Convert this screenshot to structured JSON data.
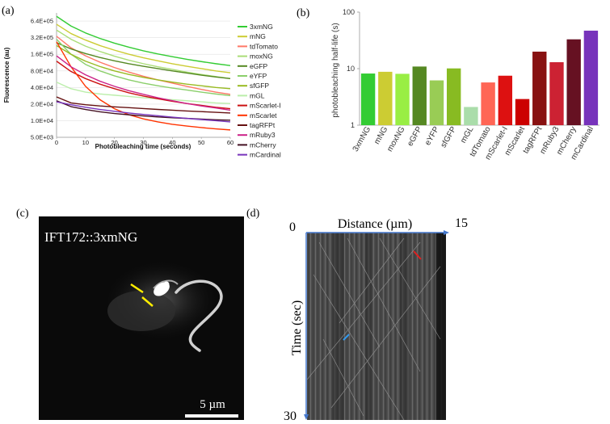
{
  "panels": {
    "a": "(a)",
    "b": "(b)",
    "c": "(c)",
    "d": "(d)"
  },
  "chart_data": [
    {
      "type": "line",
      "panel": "(a)",
      "xlabel": "Photobleaching time (seconds)",
      "ylabel": "Fluorescence (au)",
      "x_ticks": [
        "0",
        "10",
        "20",
        "30",
        "40",
        "50",
        "60"
      ],
      "xlim": [
        0,
        60
      ],
      "y_scale": "log",
      "y_ticks": [
        "6.4E+05",
        "3.2E+05",
        "1.6E+05",
        "8.0E+04",
        "4.0E+04",
        "2.0E+04",
        "1.0E+04",
        "5.0E+03"
      ],
      "ylim": [
        5000,
        900000
      ],
      "x": [
        0,
        5,
        10,
        15,
        20,
        25,
        30,
        35,
        40,
        45,
        50,
        55,
        60
      ],
      "series": [
        {
          "name": "3xmNG",
          "color": "#33cc33",
          "values": [
            780000,
            520000,
            390000,
            310000,
            255000,
            215000,
            185000,
            162000,
            145000,
            130000,
            118000,
            108000,
            100000
          ]
        },
        {
          "name": "mNG",
          "color": "#cccc33",
          "values": [
            560000,
            380000,
            290000,
            230000,
            190000,
            160000,
            138000,
            122000,
            108000,
            97000,
            88000,
            80000,
            74000
          ]
        },
        {
          "name": "tdTomato",
          "color": "#ff7766",
          "values": [
            340000,
            210000,
            150000,
            115000,
            92000,
            76000,
            64000,
            55000,
            48000,
            42000,
            37000,
            33000,
            30000
          ]
        },
        {
          "name": "moxNG",
          "color": "#aadd77",
          "values": [
            440000,
            300000,
            225000,
            180000,
            148000,
            125000,
            108000,
            95000,
            85000,
            76000,
            69000,
            63000,
            58000
          ]
        },
        {
          "name": "eGFP",
          "color": "#558822",
          "values": [
            260000,
            200000,
            165000,
            140000,
            122000,
            108000,
            97000,
            88000,
            80000,
            73000,
            67000,
            62000,
            58000
          ]
        },
        {
          "name": "eYFP",
          "color": "#8bcf6b",
          "values": [
            300000,
            160000,
            105000,
            80000,
            65000,
            55000,
            48000,
            43000,
            39000,
            36000,
            33000,
            30500,
            28500
          ]
        },
        {
          "name": "sfGFP",
          "color": "#99bb22",
          "values": [
            230000,
            160000,
            120000,
            96000,
            80000,
            69000,
            61000,
            55000,
            50000,
            46000,
            43000,
            40000,
            38000
          ]
        },
        {
          "name": "mGL",
          "color": "#bbeeaa",
          "values": [
            50000,
            38000,
            33000,
            30500,
            29000,
            27500,
            26000,
            25000,
            24000,
            23000,
            22000,
            21000,
            20500
          ]
        },
        {
          "name": "mScarlet-I",
          "color": "#cc1111",
          "values": [
            120000,
            78000,
            58000,
            46000,
            38000,
            32000,
            28000,
            25000,
            22500,
            20500,
            19000,
            17500,
            16500
          ]
        },
        {
          "name": "mScarlet",
          "color": "#ff3300",
          "values": [
            270000,
            95000,
            42000,
            24000,
            16500,
            12800,
            10800,
            9500,
            8600,
            8000,
            7500,
            7100,
            6800
          ]
        },
        {
          "name": "tagRFPt",
          "color": "#661111",
          "values": [
            27000,
            21000,
            19500,
            18500,
            17800,
            17200,
            16600,
            16000,
            15500,
            15000,
            14600,
            14200,
            13800
          ]
        },
        {
          "name": "mRuby3",
          "color": "#cc2288",
          "values": [
            150000,
            95000,
            68000,
            52000,
            42000,
            35000,
            30000,
            26000,
            23000,
            20500,
            18500,
            17000,
            15500
          ]
        },
        {
          "name": "mCherry",
          "color": "#441122",
          "values": [
            23000,
            18000,
            16000,
            14500,
            13500,
            12800,
            12200,
            11700,
            11300,
            11000,
            10700,
            10400,
            10200
          ]
        },
        {
          "name": "mCardinal",
          "color": "#7733bb",
          "values": [
            22000,
            19500,
            17500,
            16000,
            14800,
            13800,
            13000,
            12300,
            11600,
            11000,
            10500,
            10000,
            9500
          ]
        }
      ]
    },
    {
      "type": "bar",
      "panel": "(b)",
      "ylabel": "photobleaching half-life (s)",
      "y_scale": "log",
      "ylim": [
        1,
        100
      ],
      "y_ticks": [
        "100",
        "10",
        "1"
      ],
      "categories": [
        "3xmNG",
        "mNG",
        "moxNG",
        "eGFP",
        "eYFP",
        "sfGFP",
        "mGL",
        "tdTomato",
        "mScarlet-I",
        "mScarlet",
        "tagRFPt",
        "mRuby3",
        "mCherry",
        "mCardinal"
      ],
      "values": [
        8.2,
        8.8,
        8.1,
        10.9,
        6.2,
        10.1,
        2.1,
        5.7,
        7.5,
        2.9,
        20,
        13,
        33,
        47
      ],
      "colors": [
        "#33cc33",
        "#cccc33",
        "#99ee44",
        "#558822",
        "#99cc55",
        "#88bb22",
        "#aaddaa",
        "#ff6655",
        "#dd1111",
        "#cc0000",
        "#881111",
        "#cc2233",
        "#661122",
        "#7733bb"
      ]
    }
  ],
  "micrograph": {
    "label": "IFT172::3xmNG",
    "scale_bar": "5 µm"
  },
  "kymograph": {
    "x_label": "Distance (µm)",
    "x_start": "0",
    "x_end": "15",
    "y_label": "Time (sec)",
    "y_end": "30"
  }
}
